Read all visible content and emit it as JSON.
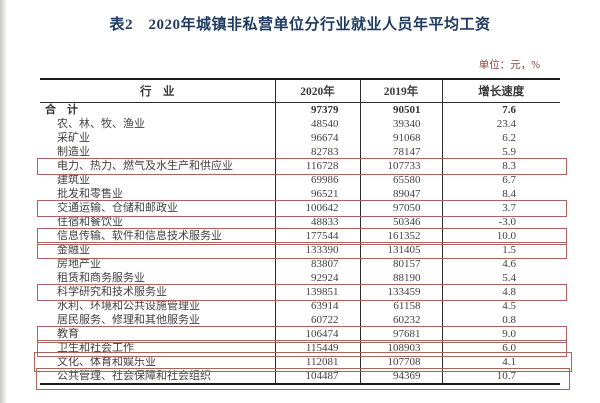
{
  "title": "表2　2020年城镇非私营单位分行业就业人员年平均工资",
  "unit_note": "单位：元，%",
  "colors": {
    "title_text": "#1e3a5f",
    "unit_note_text": "#8b4341",
    "highlight_box": "#aa635f",
    "grid_line": "#2b2b2b"
  },
  "table": {
    "columns": [
      "行　业",
      "2020年",
      "2019年",
      "增长速度"
    ],
    "rows": [
      {
        "industry": "合　计",
        "y2020": "97379",
        "y2019": "90501",
        "growth": "7.6",
        "bold": true,
        "indent": false,
        "highlighted": false
      },
      {
        "industry": "农、林、牧、渔业",
        "y2020": "48540",
        "y2019": "39340",
        "growth": "23.4",
        "bold": false,
        "indent": true,
        "highlighted": false
      },
      {
        "industry": "采矿业",
        "y2020": "96674",
        "y2019": "91068",
        "growth": "6.2",
        "bold": false,
        "indent": true,
        "highlighted": false
      },
      {
        "industry": "制造业",
        "y2020": "82783",
        "y2019": "78147",
        "growth": "5.9",
        "bold": false,
        "indent": true,
        "highlighted": false
      },
      {
        "industry": "电力、热力、燃气及水生产和供应业",
        "y2020": "116728",
        "y2019": "107733",
        "growth": "8.3",
        "bold": false,
        "indent": true,
        "highlighted": true
      },
      {
        "industry": "建筑业",
        "y2020": "69986",
        "y2019": "65580",
        "growth": "6.7",
        "bold": false,
        "indent": true,
        "highlighted": false
      },
      {
        "industry": "批发和零售业",
        "y2020": "96521",
        "y2019": "89047",
        "growth": "8.4",
        "bold": false,
        "indent": true,
        "highlighted": false
      },
      {
        "industry": "交通运输、仓储和邮政业",
        "y2020": "100642",
        "y2019": "97050",
        "growth": "3.7",
        "bold": false,
        "indent": true,
        "highlighted": true
      },
      {
        "industry": "住宿和餐饮业",
        "y2020": "48833",
        "y2019": "50346",
        "growth": "-3.0",
        "bold": false,
        "indent": true,
        "highlighted": false
      },
      {
        "industry": "信息传输、软件和信息技术服务业",
        "y2020": "177544",
        "y2019": "161352",
        "growth": "10.0",
        "bold": false,
        "indent": true,
        "highlighted": true
      },
      {
        "industry": "金融业",
        "y2020": "133390",
        "y2019": "131405",
        "growth": "1.5",
        "bold": false,
        "indent": true,
        "highlighted": true
      },
      {
        "industry": "房地产业",
        "y2020": "83807",
        "y2019": "80157",
        "growth": "4.6",
        "bold": false,
        "indent": true,
        "highlighted": false
      },
      {
        "industry": "租赁和商务服务业",
        "y2020": "92924",
        "y2019": "88190",
        "growth": "5.4",
        "bold": false,
        "indent": true,
        "highlighted": false
      },
      {
        "industry": "科学研究和技术服务业",
        "y2020": "139851",
        "y2019": "133459",
        "growth": "4.8",
        "bold": false,
        "indent": true,
        "highlighted": true
      },
      {
        "industry": "水利、环境和公共设施管理业",
        "y2020": "63914",
        "y2019": "61158",
        "growth": "4.5",
        "bold": false,
        "indent": true,
        "highlighted": false
      },
      {
        "industry": "居民服务、修理和其他服务业",
        "y2020": "60722",
        "y2019": "60232",
        "growth": "0.8",
        "bold": false,
        "indent": true,
        "highlighted": false
      },
      {
        "industry": "教育",
        "y2020": "106474",
        "y2019": "97681",
        "growth": "9.0",
        "bold": false,
        "indent": true,
        "highlighted": true
      },
      {
        "industry": "卫生和社会工作",
        "y2020": "115449",
        "y2019": "108903",
        "growth": "6.0",
        "bold": false,
        "indent": true,
        "highlighted": true
      },
      {
        "industry": "文化、体育和娱乐业",
        "y2020": "112081",
        "y2019": "107708",
        "growth": "4.1",
        "bold": false,
        "indent": true,
        "highlighted": true
      },
      {
        "industry": "公共管理、社会保障和社会组织",
        "y2020": "104487",
        "y2019": "94369",
        "growth": "10.7",
        "bold": false,
        "indent": true,
        "highlighted": true
      }
    ]
  }
}
